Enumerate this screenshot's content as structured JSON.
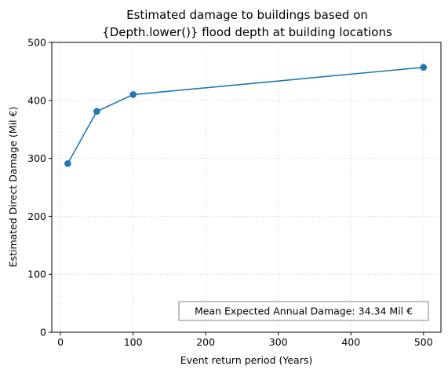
{
  "chart_data": {
    "type": "line",
    "title": [
      "Estimated damage to buildings based on",
      "{Depth.lower()} flood depth at building locations"
    ],
    "xlabel": "Event return period (Years)",
    "ylabel": "Estimated Direct Damage (Mil €)",
    "xlim": [
      -12,
      524
    ],
    "ylim": [
      0,
      500
    ],
    "xticks": [
      0,
      100,
      200,
      300,
      400,
      500
    ],
    "yticks": [
      0,
      100,
      200,
      300,
      400,
      500
    ],
    "grid": true,
    "series": [
      {
        "x": [
          10,
          50,
          100,
          500
        ],
        "values": [
          291,
          381,
          410,
          457
        ],
        "color": "#1f77b4",
        "marker": "circle"
      }
    ],
    "annotation": "Mean Expected Annual Damage: 34.34 Mil €",
    "annotation_placement": "bottom-right"
  }
}
